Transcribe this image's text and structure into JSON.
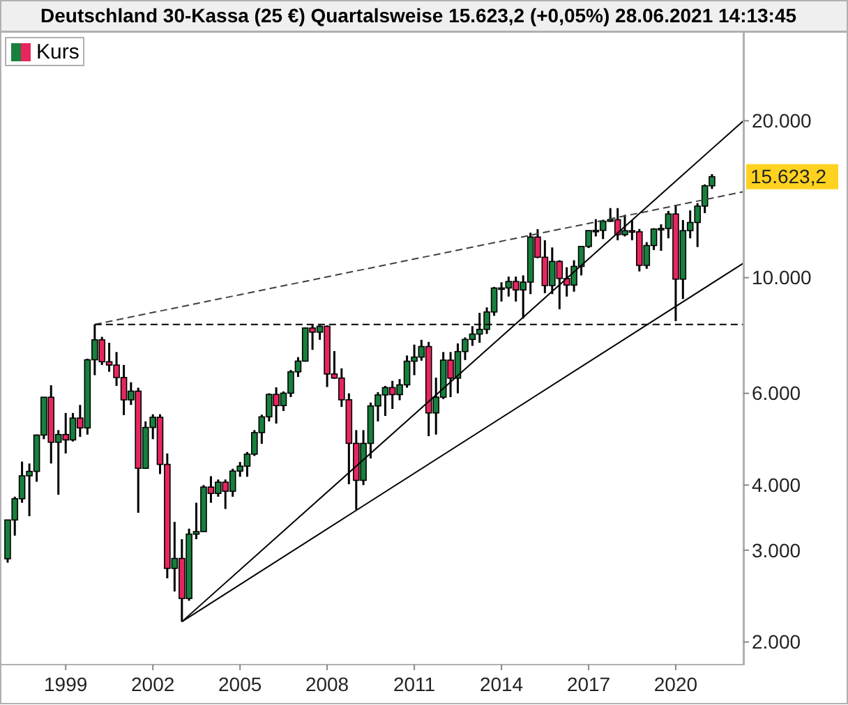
{
  "chart_data": {
    "type": "candlestick",
    "title": "Deutschland 30-Kassa (25 €) Quartalsweise 15.623,2 (+0,05%) 28.06.2021 14:13:45",
    "xlim": [
      "1996-11",
      "2022-05"
    ],
    "xticks": [
      "1999",
      "2002",
      "2005",
      "2008",
      "2011",
      "2014",
      "2017",
      "2020"
    ],
    "ylim": [
      1810,
      29600
    ],
    "log": true,
    "yticks": [
      {
        "value": 2000,
        "label": "2.000"
      },
      {
        "value": 3000,
        "label": "3.000"
      },
      {
        "value": 4000,
        "label": "4.000"
      },
      {
        "value": 6000,
        "label": "6.000"
      },
      {
        "value": 10000,
        "label": "10.000"
      },
      {
        "value": 20000,
        "label": "20.000"
      }
    ],
    "grid": false,
    "legend": "top left",
    "annotations": [
      {
        "text": "15.623,2",
        "x": "2021-04",
        "y": 15623.2
      }
    ],
    "series": [
      {
        "type": "candlestick",
        "name": "Kurs",
        "colors": [
          "#17803d",
          "#17803d",
          "#17803d",
          "#17803d",
          "#17803d",
          "#17803d",
          "#e8265e",
          "#17803d",
          "#e8265e",
          "#17803d",
          "#e8265e",
          "#17803d",
          "#17803d",
          "#e8265e",
          "#e8265e",
          "#e8265e",
          "#e8265e",
          "#17803d",
          "#e8265e",
          "#17803d",
          "#17803d",
          "#e8265e",
          "#e8265e",
          "#17803d",
          "#e8265e",
          "#17803d",
          "#17803d",
          "#17803d",
          "#e8265e",
          "#17803d",
          "#e8265e",
          "#17803d",
          "#17803d",
          "#17803d",
          "#17803d",
          "#17803d",
          "#17803d",
          "#e8265e",
          "#17803d",
          "#17803d",
          "#17803d",
          "#17803d",
          "#e8265e",
          "#17803d",
          "#e8265e",
          "#e8265e",
          "#e8265e",
          "#e8265e",
          "#e8265e",
          "#17803d",
          "#17803d",
          "#17803d",
          "#17803d",
          "#e8265e",
          "#17803d",
          "#17803d",
          "#17803d",
          "#17803d",
          "#e8265e",
          "#17803d",
          "#17803d",
          "#e8265e",
          "#17803d",
          "#17803d",
          "#17803d",
          "#17803d",
          "#17803d",
          "#17803d",
          "#17803d",
          "#17803d",
          "#e8265e",
          "#17803d",
          "#17803d",
          "#e8265e",
          "#e8265e",
          "#17803d",
          "#e8265e",
          "#e8265e",
          "#17803d",
          "#17803d",
          "#17803d",
          "#17803d",
          "#17803d",
          "#17803d",
          "#e8265e",
          "#17803d",
          "#e8265e",
          "#e8265e",
          "#17803d",
          "#17803d",
          "#17803d",
          "#17803d",
          "#e8265e",
          "#17803d",
          "#17803d",
          "#17803d",
          "#17803d",
          "#17803d"
        ],
        "x": [
          "1997-01",
          "1997-04",
          "1997-07",
          "1997-10",
          "1998-01",
          "1998-04",
          "1998-07",
          "1998-10",
          "1999-01",
          "1999-04",
          "1999-07",
          "1999-10",
          "2000-01",
          "2000-04",
          "2000-07",
          "2000-10",
          "2001-01",
          "2001-04",
          "2001-07",
          "2001-10",
          "2002-01",
          "2002-04",
          "2002-07",
          "2002-10",
          "2003-01",
          "2003-04",
          "2003-07",
          "2003-10",
          "2004-01",
          "2004-04",
          "2004-07",
          "2004-10",
          "2005-01",
          "2005-04",
          "2005-07",
          "2005-10",
          "2006-01",
          "2006-04",
          "2006-07",
          "2006-10",
          "2007-01",
          "2007-04",
          "2007-07",
          "2007-10",
          "2008-01",
          "2008-04",
          "2008-07",
          "2008-10",
          "2009-01",
          "2009-04",
          "2009-07",
          "2009-10",
          "2010-01",
          "2010-04",
          "2010-07",
          "2010-10",
          "2011-01",
          "2011-04",
          "2011-07",
          "2011-10",
          "2012-01",
          "2012-04",
          "2012-07",
          "2012-10",
          "2013-01",
          "2013-04",
          "2013-07",
          "2013-10",
          "2014-01",
          "2014-04",
          "2014-07",
          "2014-10",
          "2015-01",
          "2015-04",
          "2015-07",
          "2015-10",
          "2016-01",
          "2016-04",
          "2016-07",
          "2016-10",
          "2017-01",
          "2017-04",
          "2017-07",
          "2017-10",
          "2018-01",
          "2018-04",
          "2018-07",
          "2018-10",
          "2019-01",
          "2019-04",
          "2019-07",
          "2019-10",
          "2020-01",
          "2020-04",
          "2020-07",
          "2020-10",
          "2021-01",
          "2021-04"
        ],
        "ohlc": [
          [
            2889,
            3432,
            2840,
            3429
          ],
          [
            3429,
            3800,
            3200,
            3766
          ],
          [
            3766,
            4438,
            3700,
            4168
          ],
          [
            4168,
            4400,
            3487,
            4250
          ],
          [
            4250,
            5000,
            4060,
            4990
          ],
          [
            4990,
            5900,
            4900,
            5897
          ],
          [
            5897,
            6217,
            4400,
            4834
          ],
          [
            4834,
            5100,
            3833,
            5002
          ],
          [
            5002,
            5500,
            4600,
            4884
          ],
          [
            4884,
            5500,
            4850,
            5378
          ],
          [
            5378,
            5700,
            4950,
            5150
          ],
          [
            5150,
            6992,
            5000,
            6958
          ],
          [
            6958,
            8136,
            6500,
            7599
          ],
          [
            7599,
            7700,
            6800,
            6898
          ],
          [
            6898,
            7500,
            6600,
            6798
          ],
          [
            6798,
            7200,
            6200,
            6434
          ],
          [
            6434,
            6800,
            5450,
            5830
          ],
          [
            5830,
            6300,
            5700,
            6058
          ],
          [
            6058,
            6150,
            3540,
            4308
          ],
          [
            4308,
            5300,
            4300,
            5160
          ],
          [
            5160,
            5470,
            4900,
            5397
          ],
          [
            5397,
            5470,
            4200,
            4383
          ],
          [
            4383,
            4600,
            2650,
            2769
          ],
          [
            2769,
            3400,
            2500,
            2893
          ],
          [
            2893,
            3150,
            2188,
            2424
          ],
          [
            2424,
            3300,
            2400,
            3221
          ],
          [
            3221,
            3700,
            3150,
            3257
          ],
          [
            3257,
            4000,
            3250,
            3965
          ],
          [
            3965,
            4160,
            3700,
            3856
          ],
          [
            3856,
            4100,
            3800,
            4052
          ],
          [
            4052,
            4100,
            3600,
            3893
          ],
          [
            3893,
            4300,
            3800,
            4256
          ],
          [
            4256,
            4430,
            4150,
            4349
          ],
          [
            4349,
            4630,
            4150,
            4586
          ],
          [
            4586,
            5100,
            4550,
            5044
          ],
          [
            5044,
            5460,
            4800,
            5408
          ],
          [
            5408,
            6000,
            5300,
            5970
          ],
          [
            5970,
            6160,
            5250,
            5683
          ],
          [
            5683,
            6050,
            5550,
            6004
          ],
          [
            6004,
            6650,
            5900,
            6597
          ],
          [
            6597,
            7040,
            6450,
            6917
          ],
          [
            6917,
            8030,
            6900,
            8007
          ],
          [
            8007,
            8150,
            7270,
            7862
          ],
          [
            7862,
            8100,
            7600,
            8067
          ],
          [
            8067,
            8100,
            6170,
            6535
          ],
          [
            6535,
            7230,
            6400,
            6418
          ],
          [
            6418,
            6700,
            5650,
            5831
          ],
          [
            5831,
            6000,
            4015,
            4810
          ],
          [
            4810,
            5100,
            3588,
            4085
          ],
          [
            4085,
            5100,
            4000,
            4809
          ],
          [
            4809,
            5760,
            4500,
            5675
          ],
          [
            5675,
            6030,
            5300,
            5957
          ],
          [
            5957,
            6200,
            5430,
            6154
          ],
          [
            6154,
            6340,
            5600,
            5966
          ],
          [
            5966,
            6390,
            5820,
            6229
          ],
          [
            6229,
            7090,
            6150,
            6914
          ],
          [
            6914,
            7440,
            6500,
            7041
          ],
          [
            7041,
            7600,
            6930,
            7376
          ],
          [
            7376,
            7530,
            4965,
            5502
          ],
          [
            5502,
            6430,
            5000,
            5898
          ],
          [
            5898,
            7200,
            5850,
            6947
          ],
          [
            6947,
            7200,
            5900,
            6416
          ],
          [
            6416,
            7480,
            6000,
            7216
          ],
          [
            7216,
            7680,
            6950,
            7612
          ],
          [
            7612,
            8070,
            7400,
            7795
          ],
          [
            7795,
            8560,
            7500,
            7959
          ],
          [
            7959,
            8770,
            7800,
            8594
          ],
          [
            8594,
            9600,
            8450,
            9552
          ],
          [
            9552,
            9800,
            9000,
            9556
          ],
          [
            9556,
            10050,
            9200,
            9833
          ],
          [
            9833,
            10050,
            9000,
            9474
          ],
          [
            9474,
            10100,
            8350,
            9806
          ],
          [
            9806,
            12200,
            9300,
            11966
          ],
          [
            11966,
            12390,
            10900,
            10945
          ],
          [
            10945,
            11800,
            9340,
            9660
          ],
          [
            9660,
            11430,
            9300,
            10743
          ],
          [
            10743,
            10800,
            8700,
            9965
          ],
          [
            9965,
            10470,
            9200,
            9680
          ],
          [
            9680,
            10800,
            9400,
            10511
          ],
          [
            10511,
            11490,
            10100,
            11481
          ],
          [
            11481,
            12320,
            11400,
            12313
          ],
          [
            12313,
            12950,
            12000,
            12325
          ],
          [
            12325,
            12900,
            11860,
            12829
          ],
          [
            12829,
            13600,
            12800,
            12918
          ],
          [
            12918,
            13600,
            11800,
            12097
          ],
          [
            12097,
            13200,
            12000,
            12306
          ],
          [
            12306,
            12900,
            11800,
            12247
          ],
          [
            12247,
            12400,
            10280,
            10559
          ],
          [
            10559,
            11700,
            10400,
            11526
          ],
          [
            11526,
            12440,
            11300,
            12399
          ],
          [
            12399,
            12660,
            11260,
            12428
          ],
          [
            12428,
            13430,
            11900,
            13249
          ],
          [
            13249,
            13800,
            8255,
            9936
          ],
          [
            9936,
            12900,
            9100,
            12311
          ],
          [
            12311,
            13460,
            11900,
            12761
          ],
          [
            12761,
            13900,
            11450,
            13719
          ],
          [
            13719,
            15100,
            13300,
            15008
          ],
          [
            15008,
            15800,
            14800,
            15623
          ]
        ]
      },
      {
        "type": "line",
        "color": "#404040",
        "line_style": "dashed",
        "x": [
          "2000-01",
          "2022-05"
        ],
        "values": [
          8136,
          14620
        ]
      },
      {
        "type": "line",
        "color": "#000000",
        "line_style": "dashed",
        "x": [
          "2000-01",
          "2022-05"
        ],
        "values": [
          8136,
          8136
        ]
      },
      {
        "type": "line",
        "color": "#000000",
        "line_style": "solid",
        "x": [
          "2003-01",
          "2022-05"
        ],
        "values": [
          2188,
          10660
        ]
      },
      {
        "type": "line",
        "color": "#000000",
        "line_style": "solid",
        "x": [
          "2003-01",
          "2022-05"
        ],
        "values": [
          2188,
          20000
        ]
      }
    ]
  }
}
